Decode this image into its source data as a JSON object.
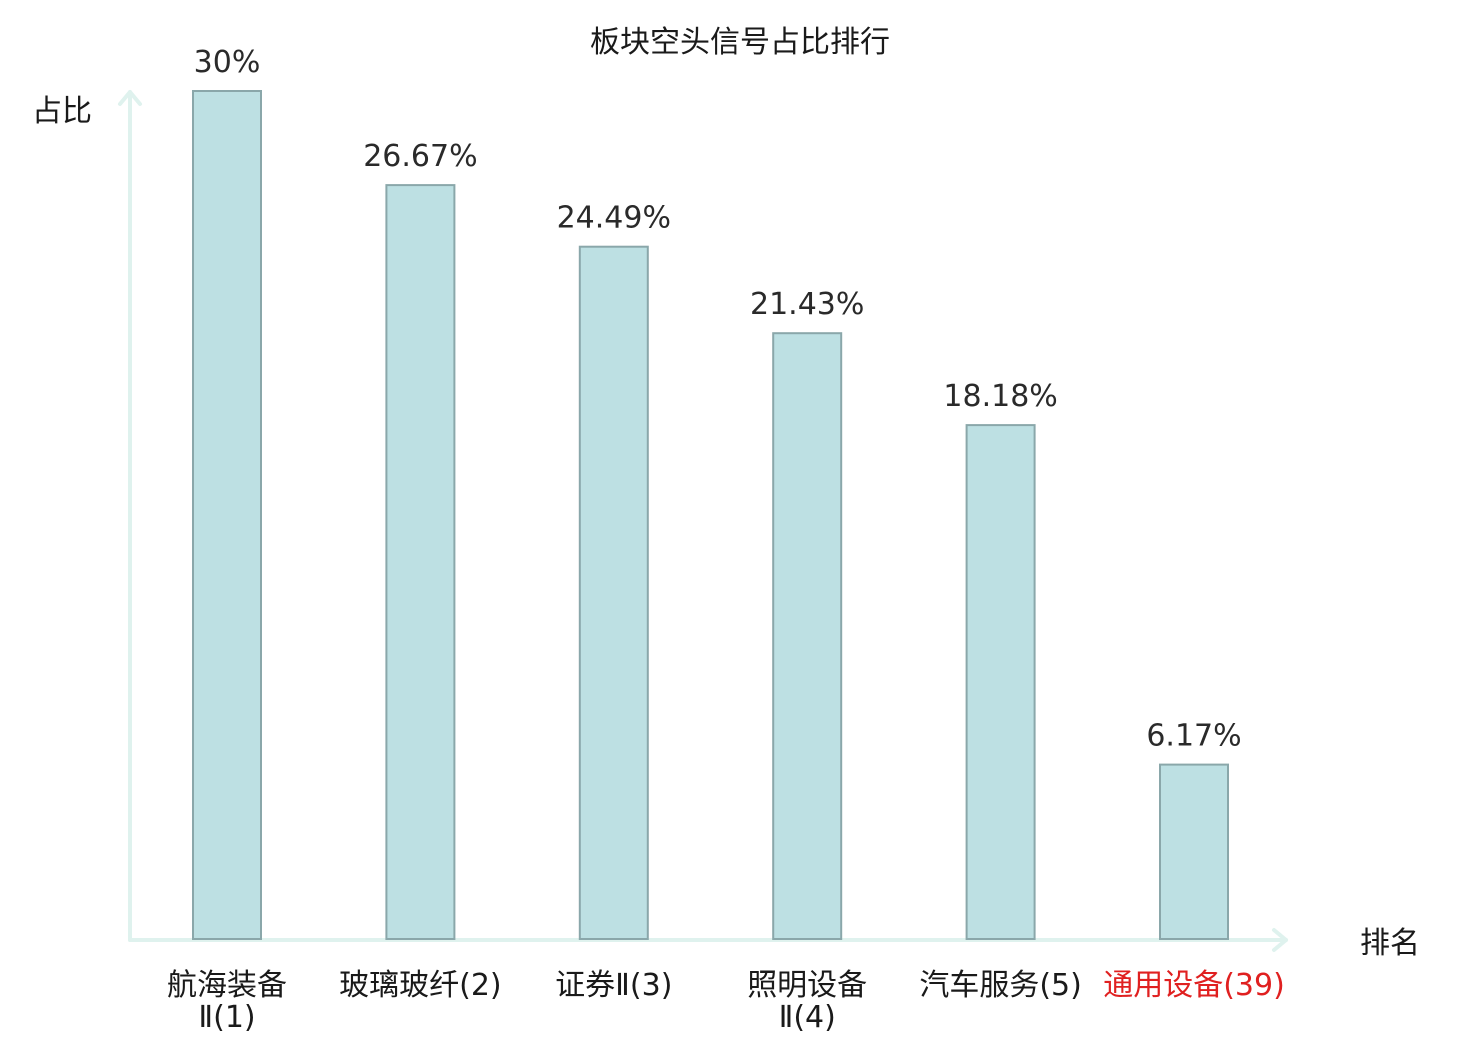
{
  "chart_data": {
    "type": "bar",
    "title": "板块空头信号占比排行",
    "ylabel": "占比",
    "xlabel": "排名",
    "ylim": [
      0,
      30
    ],
    "grid": false,
    "categories": [
      [
        "航海装备",
        "Ⅱ(1)"
      ],
      [
        "玻璃玻纤(2)"
      ],
      [
        "证券Ⅱ(3)"
      ],
      [
        "照明设备",
        "Ⅱ(4)"
      ],
      [
        "汽车服务(5)"
      ],
      [
        "通用设备(39)"
      ]
    ],
    "values": [
      30,
      26.67,
      24.49,
      21.43,
      18.18,
      6.17
    ],
    "value_labels": [
      "30%",
      "26.67%",
      "24.49%",
      "21.43%",
      "18.18%",
      "6.17%"
    ],
    "highlight_index": 5,
    "colors": {
      "bar_fill": "#bde0e3",
      "bar_stroke": "#8aa7aa",
      "axis": "#dff2ee",
      "highlight_text": "#e02020"
    }
  }
}
